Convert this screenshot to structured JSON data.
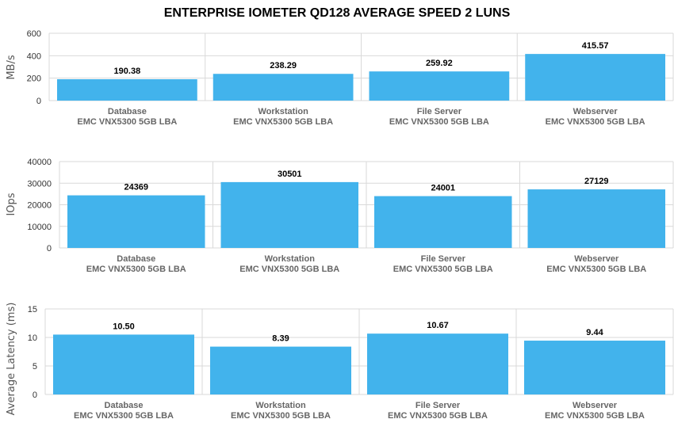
{
  "title": "ENTERPRISE IOMETER QD128 AVERAGE SPEED 2 LUNS",
  "colors": {
    "bar": "#42b3ec",
    "grid": "#d9d9d9"
  },
  "chart_data": [
    {
      "type": "bar",
      "categories": [
        "Database",
        "Workstation",
        "File Server",
        "Webserver"
      ],
      "subcategory": "EMC VNX5300 5GB LBA",
      "values": [
        190.38,
        238.29,
        259.92,
        415.57
      ],
      "value_labels": [
        "190.38",
        "238.29",
        "259.92",
        "415.57"
      ],
      "ylabel": "MB/s",
      "ylim": [
        0,
        600
      ],
      "yticks": [
        0,
        200,
        400,
        600
      ],
      "grid": true
    },
    {
      "type": "bar",
      "categories": [
        "Database",
        "Workstation",
        "File Server",
        "Webserver"
      ],
      "subcategory": "EMC VNX5300 5GB LBA",
      "values": [
        24369,
        30501,
        24001,
        27129
      ],
      "value_labels": [
        "24369",
        "30501",
        "24001",
        "27129"
      ],
      "ylabel": "IOps",
      "ylim": [
        0,
        40000
      ],
      "yticks": [
        0,
        10000,
        20000,
        30000,
        40000
      ],
      "grid": true
    },
    {
      "type": "bar",
      "categories": [
        "Database",
        "Workstation",
        "File Server",
        "Webserver"
      ],
      "subcategory": "EMC VNX5300 5GB LBA",
      "values": [
        10.5,
        8.39,
        10.67,
        9.44
      ],
      "value_labels": [
        "10.50",
        "8.39",
        "10.67",
        "9.44"
      ],
      "ylabel": "Average Latency (ms)",
      "ylim": [
        0,
        15
      ],
      "yticks": [
        0,
        5,
        10,
        15
      ],
      "grid": true
    }
  ]
}
